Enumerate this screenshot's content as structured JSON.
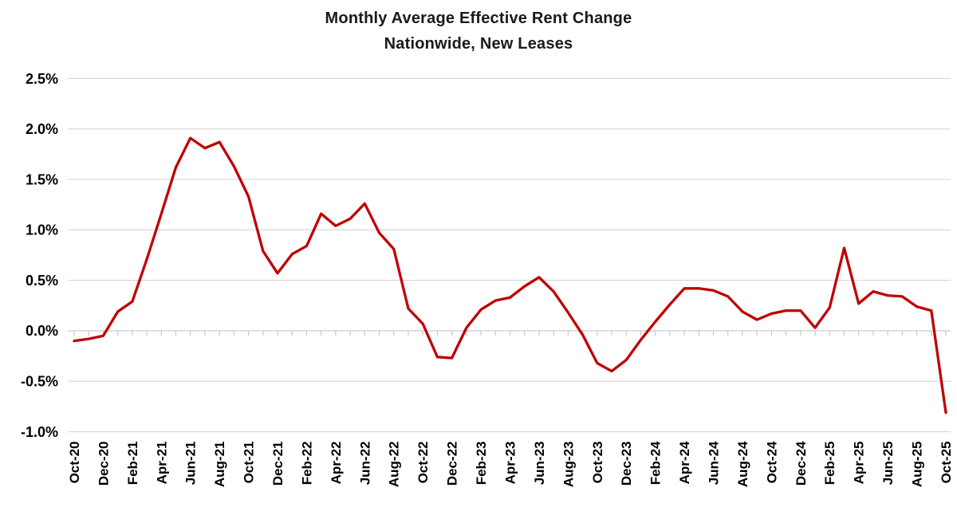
{
  "page": {
    "background": "#ffffff"
  },
  "chart_data": {
    "type": "line",
    "title": "Monthly Average Effective Rent Change",
    "subtitle": "Nationwide, New Leases",
    "legend": "none",
    "grid": "horizontal",
    "line_color": "#C00000",
    "grid_color": "#D9D9D9",
    "axis_color": "#C6C6C6",
    "text_color": "#000000",
    "ylim": [
      -1.0,
      2.5
    ],
    "y_ticks": [
      2.5,
      2.0,
      1.5,
      1.0,
      0.5,
      0.0,
      -0.5,
      -1.0
    ],
    "y_tick_labels": [
      "2.5%",
      "2.0%",
      "1.5%",
      "1.0%",
      "0.5%",
      "0.0%",
      "-0.5%",
      "-1.0%"
    ],
    "x_tick_labels": [
      "Oct-20",
      "Dec-20",
      "Feb-21",
      "Apr-21",
      "Jun-21",
      "Aug-21",
      "Oct-21",
      "Dec-21",
      "Feb-22",
      "Apr-22",
      "Jun-22",
      "Aug-22",
      "Oct-22",
      "Dec-22",
      "Feb-23",
      "Apr-23",
      "Jun-23",
      "Aug-23",
      "Oct-23",
      "Dec-23",
      "Feb-24",
      "Apr-24",
      "Jun-24",
      "Aug-24",
      "Oct-24",
      "Dec-24",
      "Feb-25",
      "Apr-25",
      "Jun-25",
      "Aug-25",
      "Oct-25"
    ],
    "x_label_every": 2,
    "x": [
      "Oct-20",
      "Nov-20",
      "Dec-20",
      "Jan-21",
      "Feb-21",
      "Mar-21",
      "Apr-21",
      "May-21",
      "Jun-21",
      "Jul-21",
      "Aug-21",
      "Sep-21",
      "Oct-21",
      "Nov-21",
      "Dec-21",
      "Jan-22",
      "Feb-22",
      "Mar-22",
      "Apr-22",
      "May-22",
      "Jun-22",
      "Jul-22",
      "Aug-22",
      "Sep-22",
      "Oct-22",
      "Nov-22",
      "Dec-22",
      "Jan-23",
      "Feb-23",
      "Mar-23",
      "Apr-23",
      "May-23",
      "Jun-23",
      "Jul-23",
      "Aug-23",
      "Sep-23",
      "Oct-23",
      "Nov-23",
      "Dec-23",
      "Jan-24",
      "Feb-24",
      "Mar-24",
      "Apr-24",
      "May-24",
      "Jun-24",
      "Jul-24",
      "Aug-24",
      "Sep-24",
      "Oct-24",
      "Nov-24",
      "Dec-24",
      "Jan-25",
      "Feb-25",
      "Mar-25",
      "Apr-25",
      "May-25",
      "Jun-25",
      "Jul-25",
      "Aug-25",
      "Sep-25",
      "Oct-25"
    ],
    "series": [
      {
        "name": "Monthly Average Effective Rent Change",
        "values": [
          -0.1,
          -0.08,
          -0.05,
          0.19,
          0.29,
          0.71,
          1.16,
          1.62,
          1.91,
          1.81,
          1.87,
          1.63,
          1.33,
          0.79,
          0.57,
          0.76,
          0.84,
          1.16,
          1.04,
          1.11,
          1.26,
          0.97,
          0.81,
          0.22,
          0.07,
          -0.26,
          -0.27,
          0.03,
          0.21,
          0.3,
          0.33,
          0.44,
          0.53,
          0.39,
          0.18,
          -0.04,
          -0.32,
          -0.4,
          -0.29,
          -0.09,
          0.09,
          0.26,
          0.42,
          0.42,
          0.4,
          0.34,
          0.19,
          0.11,
          0.17,
          0.2,
          0.2,
          0.03,
          0.23,
          0.82,
          0.27,
          0.39,
          0.35,
          0.34,
          0.24,
          0.2,
          -0.81
        ]
      }
    ]
  }
}
